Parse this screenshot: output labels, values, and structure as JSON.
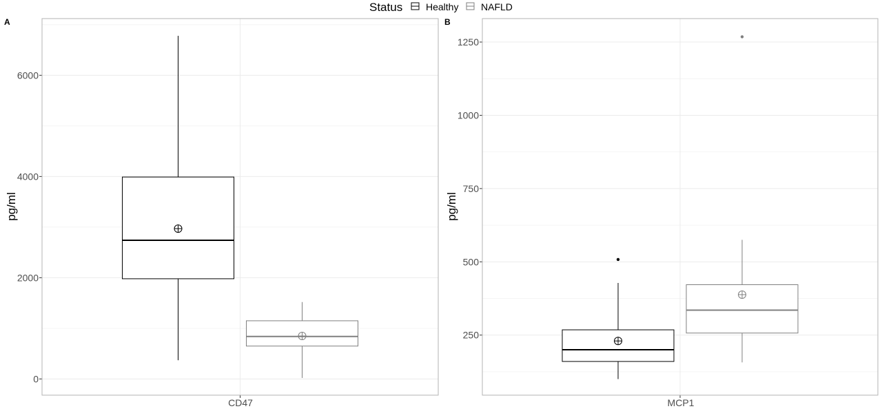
{
  "legend": {
    "title": "Status",
    "items": [
      {
        "label": "Healthy",
        "color": "#000000"
      },
      {
        "label": "NAFLD",
        "color": "#7f7f7f"
      }
    ]
  },
  "chart_data": [
    {
      "panel": "A",
      "type": "box",
      "categories": [
        "CD47"
      ],
      "ylabel": "pg/ml",
      "ylim": [
        -320,
        7120
      ],
      "yticks": [
        0,
        2000,
        4000,
        6000
      ],
      "series": [
        {
          "name": "Healthy",
          "color": "#000000",
          "whisker_low": 370,
          "q1": 1980,
          "median": 2740,
          "q3": 3990,
          "whisker_high": 6780,
          "mean": 2970,
          "outliers": []
        },
        {
          "name": "NAFLD",
          "color": "#7f7f7f",
          "whisker_low": 20,
          "q1": 650,
          "median": 840,
          "q3": 1150,
          "whisker_high": 1520,
          "mean": 850,
          "outliers": []
        }
      ]
    },
    {
      "panel": "B",
      "type": "box",
      "categories": [
        "MCP1"
      ],
      "ylabel": "pg/ml",
      "ylim": [
        45,
        1330
      ],
      "yticks": [
        250,
        500,
        750,
        1000,
        1250
      ],
      "series": [
        {
          "name": "Healthy",
          "color": "#000000",
          "whisker_low": 100,
          "q1": 160,
          "median": 200,
          "q3": 268,
          "whisker_high": 428,
          "mean": 230,
          "outliers": [
            508
          ]
        },
        {
          "name": "NAFLD",
          "color": "#7f7f7f",
          "whisker_low": 157,
          "q1": 257,
          "median": 335,
          "q3": 422,
          "whisker_high": 575,
          "mean": 388,
          "outliers": [
            1268
          ]
        }
      ]
    }
  ]
}
